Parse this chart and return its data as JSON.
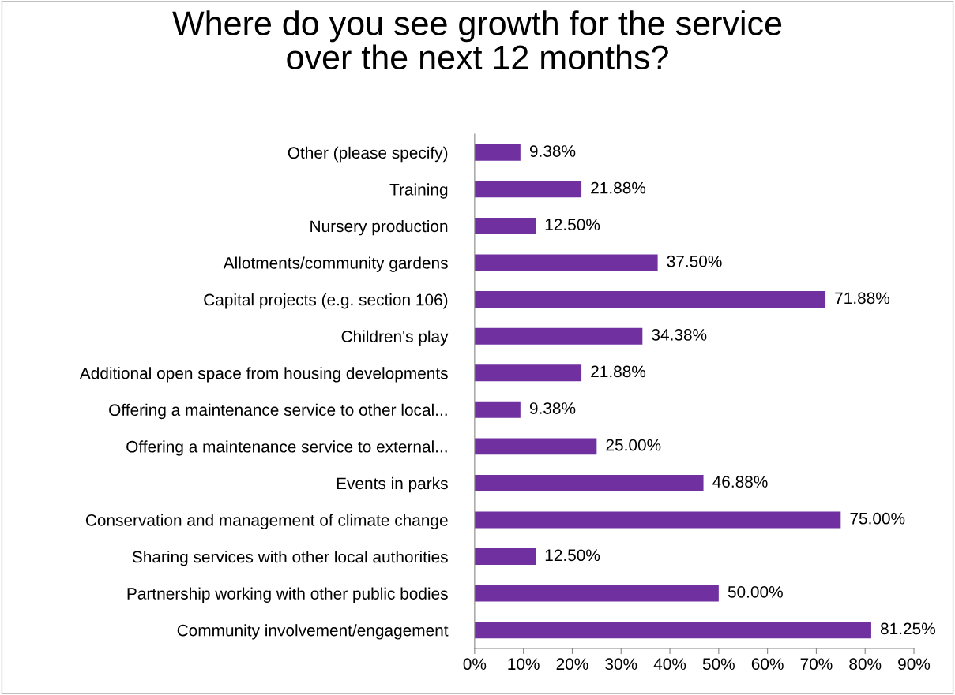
{
  "chart_data": {
    "type": "bar",
    "orientation": "horizontal",
    "title": "Where do you see growth for the service\nover the next 12 months?",
    "categories": [
      "Other (please specify)",
      "Training",
      "Nursery production",
      "Allotments/community gardens",
      "Capital projects (e.g. section 106)",
      "Children's play",
      "Additional open space from housing developments",
      "Offering a maintenance service to other local...",
      "Offering a maintenance service to external...",
      "Events in parks",
      "Conservation and management of climate change",
      "Sharing services with other local authorities",
      "Partnership working with other public bodies",
      "Community involvement/engagement"
    ],
    "values": [
      9.38,
      21.88,
      12.5,
      37.5,
      71.88,
      34.38,
      21.88,
      9.38,
      25.0,
      46.88,
      75.0,
      12.5,
      50.0,
      81.25
    ],
    "value_labels": [
      "9.38%",
      "21.88%",
      "12.50%",
      "37.50%",
      "71.88%",
      "34.38%",
      "21.88%",
      "9.38%",
      "25.00%",
      "46.88%",
      "75.00%",
      "12.50%",
      "50.00%",
      "81.25%"
    ],
    "color": "#7030a0",
    "xlim": [
      0,
      90
    ],
    "xticks": [
      {
        "value": 0,
        "label": "0%"
      },
      {
        "value": 10,
        "label": "10%"
      },
      {
        "value": 20,
        "label": "20%"
      },
      {
        "value": 30,
        "label": "30%"
      },
      {
        "value": 40,
        "label": "40%"
      },
      {
        "value": 50,
        "label": "50%"
      },
      {
        "value": 60,
        "label": "60%"
      },
      {
        "value": 70,
        "label": "70%"
      },
      {
        "value": 80,
        "label": "80%"
      },
      {
        "value": 90,
        "label": "90%"
      }
    ],
    "grid": false,
    "legend": false
  }
}
